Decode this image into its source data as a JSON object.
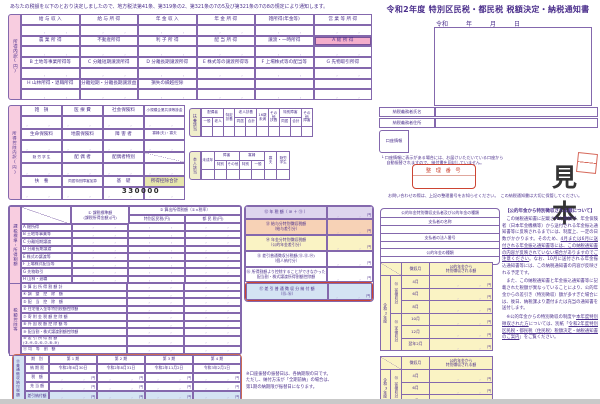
{
  "colors": {
    "line": "#8468ad",
    "text": "#4b2f8c",
    "pink": "#f8cde0",
    "highlight_pink": "#f4aecb",
    "green": "#e7e7ad",
    "lavender": "#ded5ee",
    "peach": "#f7d2b6",
    "yellow": "#faf3c4",
    "blue": "#d4e3f3",
    "red": "#cc4433",
    "stamp": "#3a3a3a"
  },
  "intro": "あなたの税額を以下のとおり決定しましたので、地方税法第41条、第319条の2、第321条の7の5及び第321条の7の8の規定により通知します。",
  "income": {
    "vertical_label": "所得内訳(円)",
    "rows": [
      [
        "給 与 収 入",
        "給 与 所 得",
        "年 金 収 入",
        "年 金 所 得",
        "雑所得(年金等)",
        "営 業 等 所 得"
      ],
      [
        "農 業 所 得",
        "不動産所得",
        "利 子 所 得",
        "配 当 所 得",
        "譲渡・一時所得",
        "A 総 所 得"
      ],
      [
        "B 土地等事業所得等",
        "C 分離短期譲渡所得",
        "D 分離長期譲渡所得",
        "E 株式等の譲渡所得等",
        "F 上場株式等の配当等",
        "G 先物取引所得"
      ],
      [
        "H 山林所得・退職所得",
        "分離短期・分離長期譲渡益",
        "損失の繰越控除",
        "",
        "",
        ""
      ]
    ]
  },
  "deduction": {
    "vertical_label": "所得控除内訳(円)",
    "rows": [
      [
        "雑　損",
        "医 療 費",
        "社会保険料",
        "小規模企業共済等掛金"
      ],
      [
        "生命保険料",
        "地震保険料",
        "障 害 者",
        "寡婦(夫)・寡夫"
      ],
      [
        "勤 労 学 生",
        "配 偶 者",
        "配偶者特別",
        ""
      ],
      [
        "扶　養",
        "同居特別障害加算",
        "基　礎",
        "所得控除合計"
      ]
    ],
    "basic_value": "330000"
  },
  "dependents": {
    "vertical_label": "扶養該当",
    "groups": [
      {
        "t": "配偶者",
        "s": [
          "一般",
          "老人"
        ]
      },
      {
        "t": "特定\n扶養"
      },
      {
        "t": "老人扶養",
        "s": [
          "同居",
          "合計"
        ]
      },
      {
        "t": "16歳\n未満"
      },
      {
        "t": "その他\n扶養"
      },
      {
        "t": "特別障害",
        "s": [
          "同居",
          "合計"
        ]
      },
      {
        "t": "その他\n障害"
      }
    ]
  },
  "self": {
    "vertical_label": "本人該当",
    "groups": [
      {
        "t": "未成年"
      },
      {
        "t": "障害",
        "s": [
          "特別",
          "その他"
        ]
      },
      {
        "t": "寡婦",
        "s": [
          "特別",
          "一般"
        ]
      },
      {
        "t": "寡\n夫"
      },
      {
        "t": "勤労\n学生"
      }
    ]
  },
  "tax_table": {
    "vertical_label_1": "課税標準・所得割額",
    "vertical_label_2": "税額控除等",
    "col1_header": "① 課税標準額\n(課税所得金額)(円)",
    "col2_header": "② 算出所得割額（①×税率）",
    "col2_subs": [
      "特別区民税(円)",
      "都 民 税(円)"
    ],
    "rows_ah": [
      "A 総所得",
      "B 土地等事業等",
      "C 分離短期譲渡",
      "D 分離長期譲渡",
      "E 株式の譲渡等",
      "F 上場株式配当等",
      "G 先物取引",
      "H 山林・退職"
    ],
    "rows_credit": [
      "③ 算 出 所 得 割 額 計",
      "④ 調　整　控　除　額",
      "⑤ 配　当　控　除　額",
      "⑥ 住宅借入金等特別税額控除額",
      "⑦ 寄 附 金 税 額 控 除 額",
      "⑧ 外 国 税 額 控 除 額 等",
      "⑨ 配当割・株式譲渡割額控除額",
      "⑩ 差 引 所 得 割 額\n(③-④-⑤-⑥-⑦-⑧-⑨)",
      "⑪ 均　等　割　額"
    ]
  },
  "summary": {
    "unit": "円",
    "rows": [
      {
        "n": "⑫",
        "l1": "年 税 額（ ⑩ ＋ ⑪ ）",
        "l2": "",
        "bg": "lav",
        "red": false
      },
      {
        "n": "⑬",
        "l1": "給与分特別徴収税額",
        "l2": "（給与差引分）",
        "bg": "peach",
        "red": false
      },
      {
        "n": "⑭",
        "l1": "年金分特別徴収税額",
        "l2": "（公的年金差引分）",
        "bg": "yel",
        "red": false
      },
      {
        "n": "⑮",
        "l1": "差引普通徴収分税額(⑫-⑬-⑭)",
        "l2": "（個人納付分）",
        "bg": "",
        "red": false
      },
      {
        "n": "⑯",
        "l1": "所得割額より控除することができなかった",
        "l2": "配当割・株式譲渡所得割額控除額",
        "bg": "",
        "red": false
      },
      {
        "n": "⑰",
        "l1": "差 引 普 通 徴 収 分 納 付 額",
        "l2": "（⑮-⑯）",
        "bg": "blue",
        "red": true
      }
    ]
  },
  "payment": {
    "vertical_label": "⑰普通徴収納付税額",
    "row_labels": [
      "期　別",
      "納 期 限",
      "税　額",
      "充 当 額",
      "差引納付額"
    ],
    "periods": [
      "第 1 期",
      "第 2 期",
      "第 3 期",
      "第 4 期"
    ],
    "due_dates": [
      "令和2年6月30日",
      "令和2年8月31日",
      "令和2年11月2日",
      "令和3年2月1日"
    ],
    "unit": "円",
    "note": "※口座振替の振替日は、各納期限の日です。\nただし、納付方法が「全期前納」の場合は、\n第1期の納期限が振替日になります。"
  },
  "right_header": {
    "title": "令和2年度 特別区民税・都民税 税額決定・納税通知書",
    "date_line": "令和　　　年　　　月　　　日",
    "name_label": "納税義務者氏名",
    "addr_label": "納税義務者住所",
    "account_label": "口座情報",
    "account_rows": [
      "金融機関名",
      "支 店 名",
      "口 座 番 号"
    ],
    "account_note": "└ 口座情報に表示がある場合には、お届けいただいている口座から\n　 自動振替されますので、納付書を同封していません。",
    "ref_label": "整 理 番 号",
    "sample_label": "見本",
    "footer_note": "お問い合わせの際は、上記の整理番号をお知らせください。　この納税通知書は大切に保管してください。"
  },
  "pension": {
    "payer_title": "公的年金特別徴収支払者及び公的年金の種類",
    "payer_rows": [
      "支払者の名称",
      "支払者の法人番号",
      "公的年金の種類"
    ],
    "month_header": "徴収月",
    "amount_header": "公的年金から\n特別徴収される額",
    "unit": "円",
    "r2": {
      "year": "令和2年度",
      "groups": [
        {
          "g": "⑭〔仮徴収分〕",
          "months": [
            "4月",
            "6月",
            "8月"
          ]
        },
        {
          "g": "⑭〔本徴収分〕",
          "months": [
            "10月",
            "12月",
            "翌年2月"
          ]
        }
      ]
    },
    "r3": {
      "year": "令和3年度",
      "groups": [
        {
          "g": "⑭〔仮徴収分〕",
          "months": [
            "4月",
            "6月",
            "8月"
          ]
        }
      ]
    },
    "info_title": "【公的年金から特別徴収される額について】",
    "paragraphs": [
      [
        {
          "t": "　この納税通知書に記載された税額が、年金保険者（日本年金機構等）から送付される年金振込通知書等に反映されるまでには、制度上、一定の日数がかかります。そのため、"
        },
        {
          "t": "4月または6月に送付される年金振込通知書等には、この納税通知書の内容が反映されていない場合がありますのでご注意ください",
          "u": true
        },
        {
          "t": "。なお、10月に送付される年金振込通知書等には、この納税通知書の内容が反映される予定です。"
        }
      ],
      [
        {
          "t": "　また、この納税通知書と年金振込通知書等に記載された税額が異なっていることにより、公的年金からの差引き（特別徴収）額が多すぎた場合には、後日、納税課より還付または充当の通知書を送付します。"
        }
      ],
      [
        {
          "t": "　※公的年金からの特別徴収の制度や"
        },
        {
          "t": "本年度特別徴収された方",
          "u": true
        },
        {
          "t": "については、別紙「"
        },
        {
          "t": "令和2年度特別区民税・都民税（住民税）税額決定・納税通知書のご案内",
          "u": true
        },
        {
          "t": "」をご覧ください。"
        }
      ]
    ]
  }
}
